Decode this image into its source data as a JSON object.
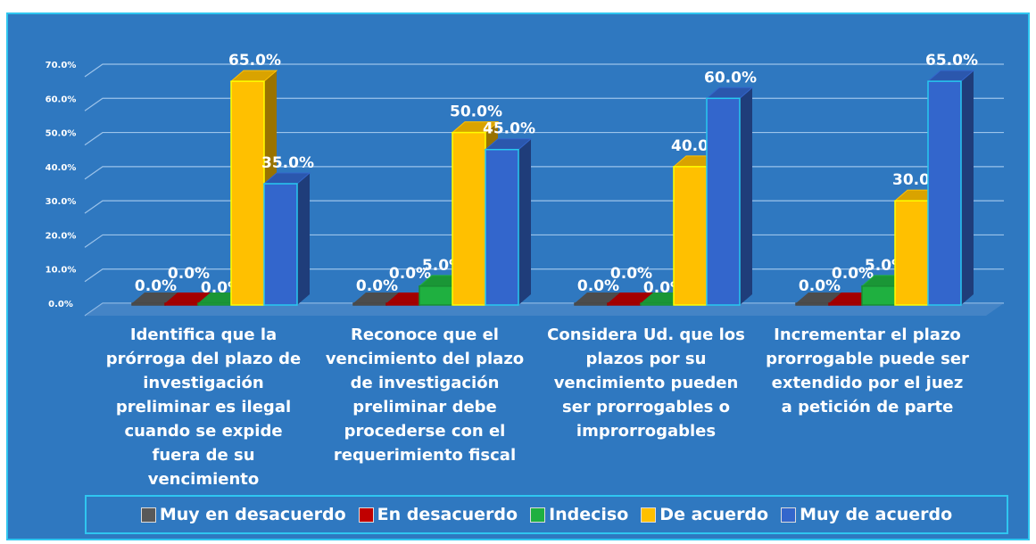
{
  "chart_data": {
    "type": "bar3d",
    "categories": [
      "Identifica que la prórroga del plazo de investigación preliminar es ilegal cuando se expide fuera de su vencimiento",
      "Reconoce que el vencimiento del plazo de investigación preliminar debe procederse con el requerimiento fiscal",
      "Considera Ud. que los plazos por su vencimiento pueden ser prorrogables o improrrogables",
      "Incrementar el plazo prorrogable puede ser extendido por el juez a petición de parte"
    ],
    "series": [
      {
        "name": "Muy en desacuerdo",
        "color": "#595959",
        "values": [
          0,
          0,
          0,
          0
        ],
        "value_labels": [
          "0.0%",
          "0.0%",
          "0.0%",
          "0.0%"
        ]
      },
      {
        "name": "En desacuerdo",
        "color": "#c00000",
        "values": [
          0,
          0,
          0,
          0
        ],
        "value_labels": [
          "0.0%",
          "0.0%",
          "0.0%",
          "0.0%"
        ]
      },
      {
        "name": "Indeciso",
        "color": "#1fb040",
        "values": [
          0,
          5,
          0,
          5
        ],
        "value_labels": [
          "0.0%",
          "5.0%",
          "0.0%",
          "5.0%"
        ]
      },
      {
        "name": "De acuerdo",
        "color": "#ffc000",
        "values": [
          65,
          50,
          40,
          30
        ],
        "value_labels": [
          "65.0%",
          "50.0%",
          "40.0%",
          "30.0%"
        ]
      },
      {
        "name": "Muy de acuerdo",
        "color": "#3366cc",
        "values": [
          35,
          45,
          60,
          65
        ],
        "value_labels": [
          "35.0%",
          "45.0%",
          "60.0%",
          "65.0%"
        ]
      }
    ],
    "ylim": [
      0,
      70
    ],
    "yticks": [
      {
        "value": 0,
        "label": "0.0%"
      },
      {
        "value": 10,
        "label": "10.0%"
      },
      {
        "value": 20,
        "label": "20.0%"
      },
      {
        "value": 30,
        "label": "30.0%"
      },
      {
        "value": 40,
        "label": "40.0%"
      },
      {
        "value": 50,
        "label": "50.0%"
      },
      {
        "value": 60,
        "label": "60.0%"
      },
      {
        "value": 70,
        "label": "70.0%"
      }
    ],
    "grid": true
  }
}
